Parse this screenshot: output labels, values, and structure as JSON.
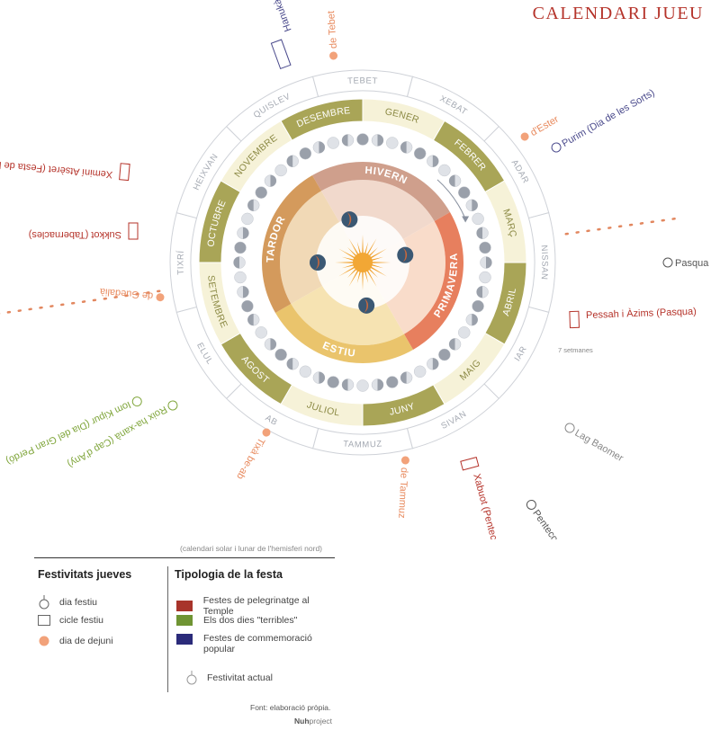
{
  "title": "CALENDARI JUEU",
  "seasons": [
    {
      "label": "HIVERN",
      "color": "#cf9f8c",
      "light": "#f1d9cc"
    },
    {
      "label": "PRIMAVERA",
      "color": "#e77f5e",
      "light": "#f9dcca"
    },
    {
      "label": "ESTIU",
      "color": "#eac46c",
      "light": "#f6e3b2"
    },
    {
      "label": "TARDOR",
      "color": "#d49a5c",
      "light": "#f1d9b6"
    }
  ],
  "solar_months": [
    "GENER",
    "FEBRER",
    "MARÇ",
    "ABRIL",
    "MAIG",
    "JUNY",
    "JULIOL",
    "AGOST",
    "SETEMBRE",
    "OCTUBRE",
    "NOVEMBRE",
    "DESEMBRE"
  ],
  "lunar_months": [
    "XEBAT",
    "ADAR",
    "NISSAN",
    "IAR",
    "SIVAN",
    "TAMMUZ",
    "AB",
    "ELUL",
    "TIXRÍ",
    "HEIXVAN",
    "QUISLEV",
    "TEBET"
  ],
  "festivals": [
    {
      "name": "Hanukà (Dedicació)",
      "type": "cicle",
      "color": "#4a4a8c"
    },
    {
      "name": "de Tebet",
      "type": "dejuni",
      "color": "#e88a5e"
    },
    {
      "name": "Purim (Dia de les Sorts)",
      "type": "festiu",
      "color": "#4a4a8c"
    },
    {
      "name": "d'Ester",
      "type": "dejuni",
      "color": "#e88a5e"
    },
    {
      "name": "Pasqua",
      "type": "actual",
      "color": "#555555"
    },
    {
      "name": "Pessah i Àzims (Pasqua)",
      "type": "pelegrinatge",
      "color": "#b5332a"
    },
    {
      "name": "7 setmanes",
      "type": "note",
      "color": "#888888"
    },
    {
      "name": "Lag Baomer",
      "type": "actual",
      "color": "#888888"
    },
    {
      "name": "Xabuot (Pentecosta)",
      "type": "pelegrinatge",
      "color": "#b5332a"
    },
    {
      "name": "Pentecosta",
      "type": "actual",
      "color": "#555555"
    },
    {
      "name": "de Tammuz",
      "type": "dejuni",
      "color": "#e88a5e"
    },
    {
      "name": "Tixà be-ab",
      "type": "dejuni",
      "color": "#e88a5e"
    },
    {
      "name": "Roix ha-xanà (Cap d'Any)",
      "type": "terrible",
      "color": "#7fa53a"
    },
    {
      "name": "Iom Kipur (Dia del Gran Perdó)",
      "type": "terrible",
      "color": "#7fa53a"
    },
    {
      "name": "de Guedalià",
      "type": "dejuni",
      "color": "#e88a5e"
    },
    {
      "name": "Sukkot (Tabernacles)",
      "type": "pelegrinatge",
      "color": "#b5332a"
    },
    {
      "name": "Xeminí Atsèret (Festa de la Cloenda)",
      "type": "pelegrinatge",
      "color": "#b5332a"
    }
  ],
  "note": "(calendari solar i lunar de l'hemisferi nord)",
  "legend": {
    "festivals_title": "Festivitats jueves",
    "festivals_items": [
      "dia festiu",
      "cicle festiu",
      "dia de dejuni"
    ],
    "types_title": "Tipologia de la festa",
    "types_items": [
      {
        "label": "Festes de pelegrinatge al Temple",
        "color": "#a8342b"
      },
      {
        "label": "Els dos dies \"terribles\"",
        "color": "#6f9433"
      },
      {
        "label": "Festes de commemoració popular",
        "color": "#2b2b7a"
      }
    ],
    "current_label": "Festivitat actual"
  },
  "source": "Font:  elaboració pròpia.",
  "brand": {
    "bold": "Nuh",
    "rest": "project"
  },
  "colors": {
    "olive": "#a9a557",
    "olive_light": "#f6f2d8",
    "ring_stroke": "#cfd2d8",
    "dejuni": "#f2a27a",
    "moon_dark": "#9aa0aa"
  }
}
